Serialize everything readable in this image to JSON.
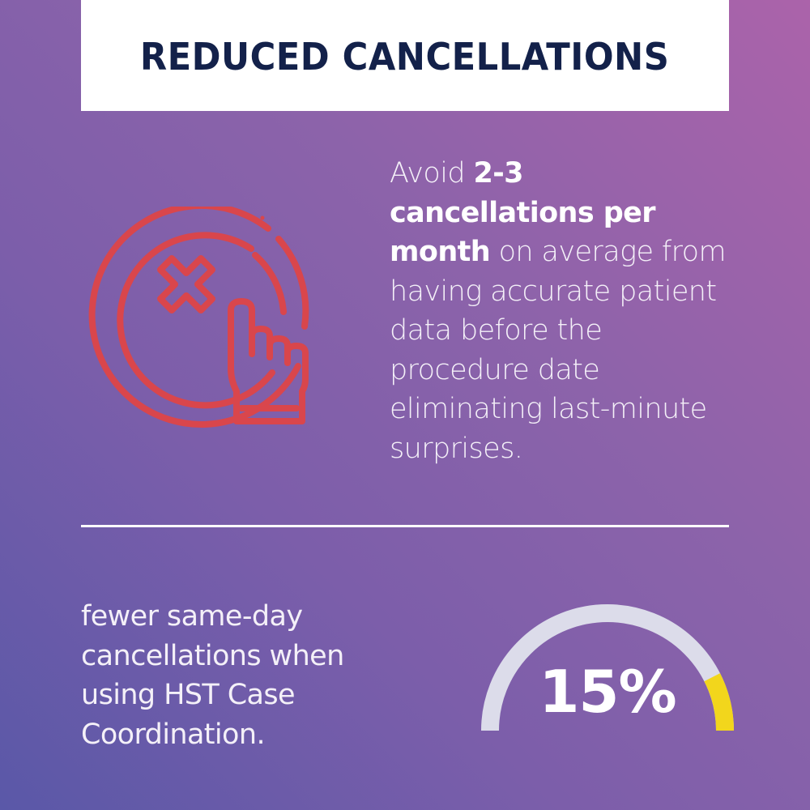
{
  "header": {
    "title": "REDUCED CANCELLATIONS"
  },
  "highlight": {
    "icon": "cancel-x-circle-with-pointing-hand-icon",
    "icon_color": "#d9464c",
    "text_prefix": "Avoid ",
    "text_bold": "2-3 cancellations per month",
    "text_suffix": " on average from having accurate patient data before the procedure date eliminating last-minute surprises."
  },
  "stat": {
    "description": "fewer same-day cancellations when using HST Case Coordination.",
    "value_label": "15%",
    "gauge": {
      "level_percent": 85,
      "fill_color": "#f2d61c",
      "track_color": "#dcdcea"
    }
  },
  "colors": {
    "title_text": "#13214a",
    "title_background": "#ffffff",
    "divider": "#ffffff"
  }
}
